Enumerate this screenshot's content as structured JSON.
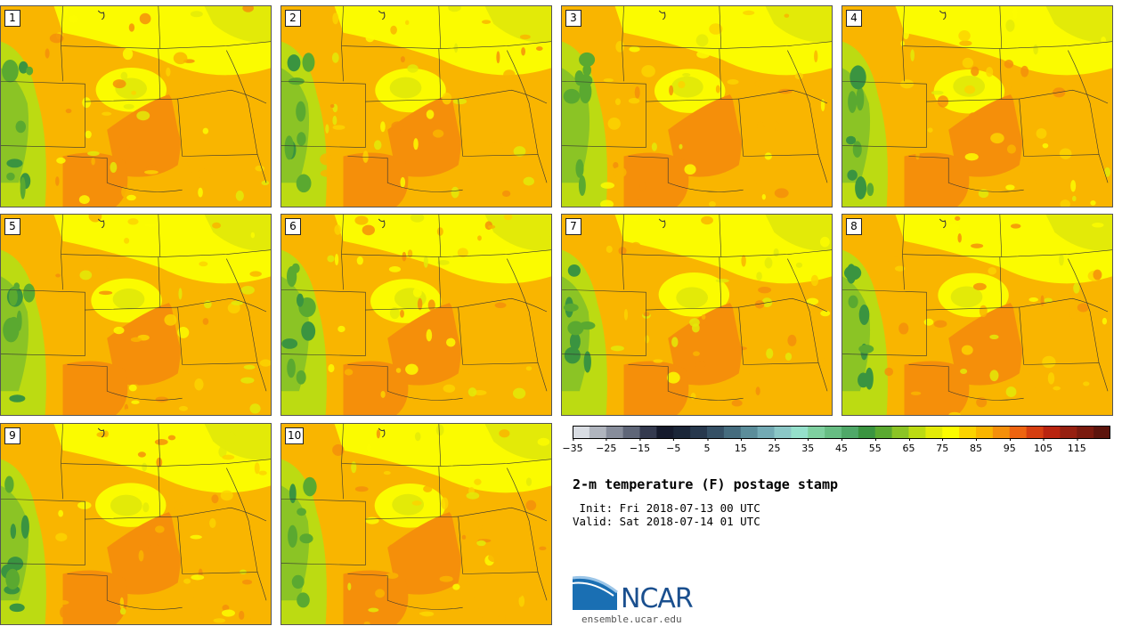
{
  "stamps": [
    {
      "label": "1"
    },
    {
      "label": "2"
    },
    {
      "label": "3"
    },
    {
      "label": "4"
    },
    {
      "label": "5"
    },
    {
      "label": "6"
    },
    {
      "label": "7"
    },
    {
      "label": "8"
    },
    {
      "label": "9"
    },
    {
      "label": "10"
    }
  ],
  "colorbar": {
    "ticks": [
      "−35",
      "−25",
      "−15",
      "−5",
      "5",
      "15",
      "25",
      "35",
      "45",
      "55",
      "65",
      "75",
      "85",
      "95",
      "105",
      "115"
    ],
    "colors": [
      "#d9dde3",
      "#b0b5be",
      "#878d9b",
      "#5f6678",
      "#343a4f",
      "#151a2c",
      "#1b2638",
      "#27384d",
      "#355065",
      "#456c7e",
      "#5b8d9a",
      "#73aab4",
      "#8bc7c6",
      "#95e0cb",
      "#7fd0a0",
      "#67bd83",
      "#4fa868",
      "#3a9440",
      "#5aa930",
      "#8bc425",
      "#bcdb12",
      "#e3ea08",
      "#fbfb00",
      "#fbd300",
      "#f9b500",
      "#f58f0a",
      "#ee6410",
      "#d63e10",
      "#b9240f",
      "#962010",
      "#7a1a0e",
      "#5c140c"
    ]
  },
  "title": "2-m temperature (F) postage stamp",
  "init_line": " Init: Fri 2018-07-13 00 UTC",
  "valid_line": "Valid: Sat 2018-07-14 01 UTC",
  "logo": {
    "name": "NCAR",
    "url": "ensemble.ucar.edu"
  }
}
